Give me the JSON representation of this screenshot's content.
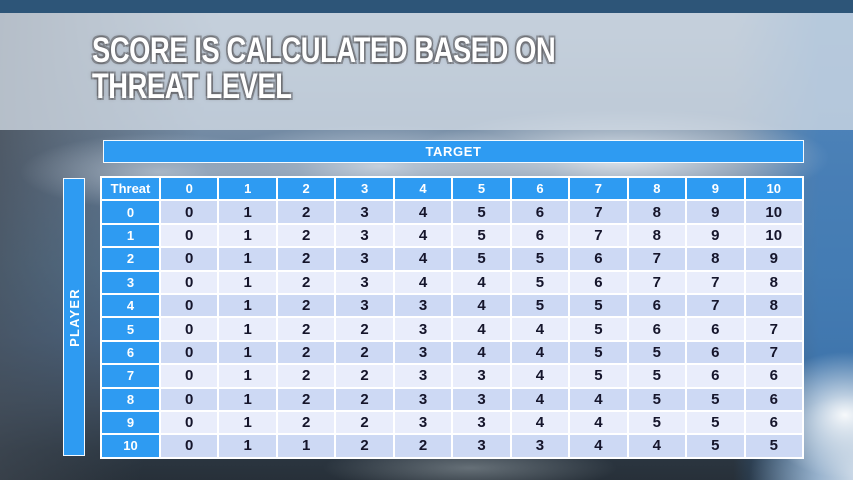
{
  "slide": {
    "title": "SCORE IS CALCULATED BASED ON THREAT LEVEL"
  },
  "matrix": {
    "target_label": "TARGET",
    "player_label": "PLAYER",
    "corner_label": "Threat",
    "column_headers": [
      "0",
      "1",
      "2",
      "3",
      "4",
      "5",
      "6",
      "7",
      "8",
      "9",
      "10"
    ],
    "row_headers": [
      "0",
      "1",
      "2",
      "3",
      "4",
      "5",
      "6",
      "7",
      "8",
      "9",
      "10"
    ],
    "rows": [
      [
        0,
        1,
        2,
        3,
        4,
        5,
        6,
        7,
        8,
        9,
        10
      ],
      [
        0,
        1,
        2,
        3,
        4,
        5,
        6,
        7,
        8,
        9,
        10
      ],
      [
        0,
        1,
        2,
        3,
        4,
        5,
        5,
        6,
        7,
        8,
        9
      ],
      [
        0,
        1,
        2,
        3,
        4,
        4,
        5,
        6,
        7,
        7,
        8
      ],
      [
        0,
        1,
        2,
        3,
        3,
        4,
        5,
        5,
        6,
        7,
        8
      ],
      [
        0,
        1,
        2,
        2,
        3,
        4,
        4,
        5,
        6,
        6,
        7
      ],
      [
        0,
        1,
        2,
        2,
        3,
        4,
        4,
        5,
        5,
        6,
        7
      ],
      [
        0,
        1,
        2,
        2,
        3,
        3,
        4,
        5,
        5,
        6,
        6
      ],
      [
        0,
        1,
        2,
        2,
        3,
        3,
        4,
        4,
        5,
        5,
        6
      ],
      [
        0,
        1,
        2,
        2,
        3,
        3,
        4,
        4,
        5,
        5,
        6
      ],
      [
        0,
        1,
        1,
        2,
        2,
        3,
        3,
        4,
        4,
        5,
        5
      ]
    ]
  },
  "colors": {
    "accent_blue": "#2e9bf2",
    "top_bar": "#2d5578",
    "row_shade_a": "#cdd9f4",
    "row_shade_b": "#e9edfb",
    "cell_text": "#15152b"
  }
}
